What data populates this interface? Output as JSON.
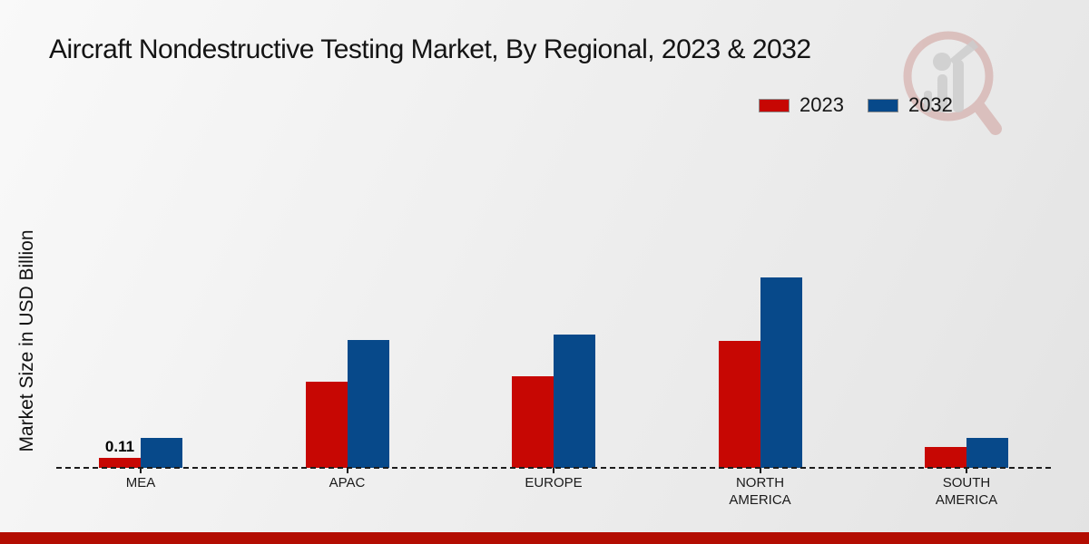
{
  "header": {
    "title": "Aircraft Nondestructive Testing Market, By Regional, 2023 & 2032"
  },
  "colors": {
    "accent_red": "#c70703",
    "accent_blue": "#07498a",
    "footer_bar": "#b30d02",
    "baseline": "#1c1c1c",
    "watermark_ring": "#cf9e9a",
    "watermark_bars": "#cdcdcd"
  },
  "chart_data": {
    "type": "bar",
    "title": "Aircraft Nondestructive Testing Market, By Regional, 2023 & 2032",
    "categories": [
      "MEA",
      "APAC",
      "EUROPE",
      "NORTH AMERICA",
      "SOUTH AMERICA"
    ],
    "series": [
      {
        "name": "2023",
        "color": "#c70703",
        "values": [
          0.11,
          0.95,
          1.01,
          1.4,
          0.23
        ]
      },
      {
        "name": "2032",
        "color": "#07498a",
        "values": [
          0.33,
          1.41,
          1.47,
          2.1,
          0.33
        ]
      }
    ],
    "xlabel": "",
    "ylabel": "Market Size in USD Billion",
    "ylim": [
      0,
      2.4
    ],
    "grid": false,
    "legend_position": "top-right",
    "baseline_style": "dashed",
    "annotations": [
      {
        "series": "2023",
        "category": "MEA",
        "text": "0.11"
      }
    ]
  }
}
